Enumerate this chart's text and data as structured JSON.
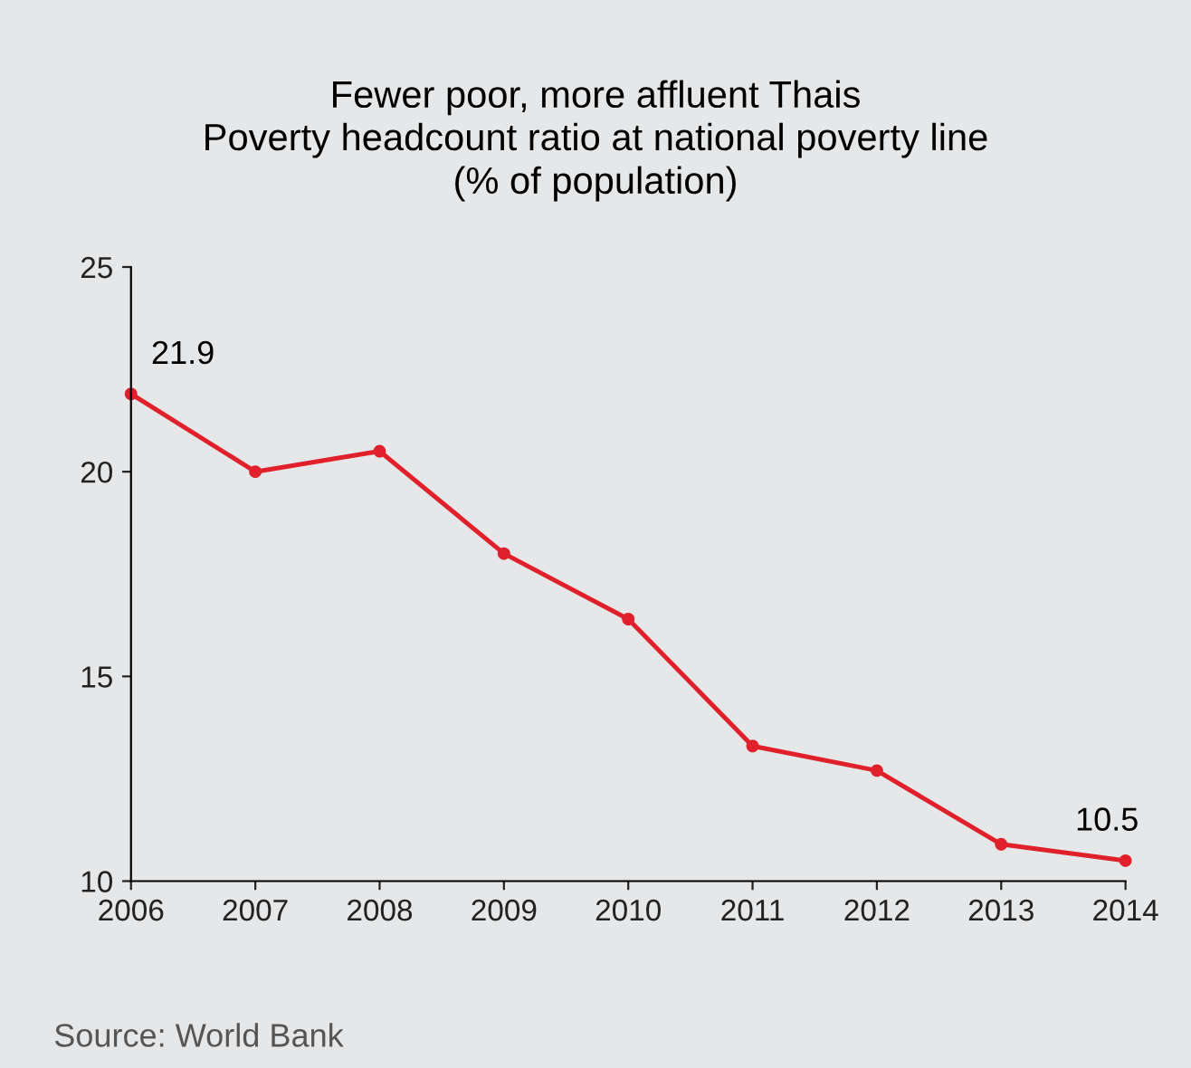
{
  "chart_data": {
    "type": "line",
    "title": "Fewer poor, more affluent Thais",
    "subtitle": "Poverty headcount ratio at national poverty line\n(% of population)",
    "x": [
      2006,
      2007,
      2008,
      2009,
      2010,
      2011,
      2012,
      2013,
      2014
    ],
    "series": [
      {
        "color": "#e0202a",
        "values": [
          21.9,
          20.0,
          20.5,
          18.0,
          16.4,
          13.3,
          12.7,
          10.9,
          10.5
        ]
      }
    ],
    "xlim": [
      2006,
      2014
    ],
    "xticks": [
      2006,
      2007,
      2008,
      2009,
      2010,
      2011,
      2012,
      2013,
      2014
    ],
    "ylim": [
      10,
      25
    ],
    "yticks": [
      10,
      15,
      20,
      25
    ],
    "annotations": [
      {
        "text": "21.9",
        "x": 2006,
        "y": 21.9
      },
      {
        "text": "10.5",
        "x": 2014,
        "y": 10.5
      },
      "Source: World Bank"
    ],
    "marker": "circle",
    "line_style": "solid",
    "grid": false,
    "legend": false
  }
}
